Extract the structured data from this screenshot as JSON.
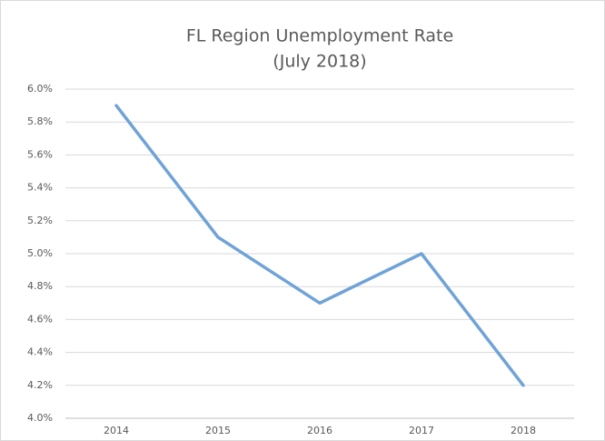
{
  "chart_data": {
    "type": "line",
    "title": "FL Region Unemployment Rate",
    "subtitle": "(July 2018)",
    "categories": [
      "2014",
      "2015",
      "2016",
      "2017",
      "2018"
    ],
    "series": [
      {
        "name": "Unemployment Rate",
        "color": "#6fa3d8",
        "values": [
          5.9,
          5.1,
          4.7,
          5.0,
          4.2
        ]
      }
    ],
    "ylim": [
      4.0,
      6.0
    ],
    "yticks": [
      {
        "value": 4.0,
        "label": "4.0%"
      },
      {
        "value": 4.2,
        "label": "4.2%"
      },
      {
        "value": 4.4,
        "label": "4.4%"
      },
      {
        "value": 4.6,
        "label": "4.6%"
      },
      {
        "value": 4.8,
        "label": "4.8%"
      },
      {
        "value": 5.0,
        "label": "5.0%"
      },
      {
        "value": 5.2,
        "label": "5.2%"
      },
      {
        "value": 5.4,
        "label": "5.4%"
      },
      {
        "value": 5.6,
        "label": "5.6%"
      },
      {
        "value": 5.8,
        "label": "5.8%"
      },
      {
        "value": 6.0,
        "label": "6.0%"
      }
    ],
    "grid": true,
    "legend": false
  }
}
